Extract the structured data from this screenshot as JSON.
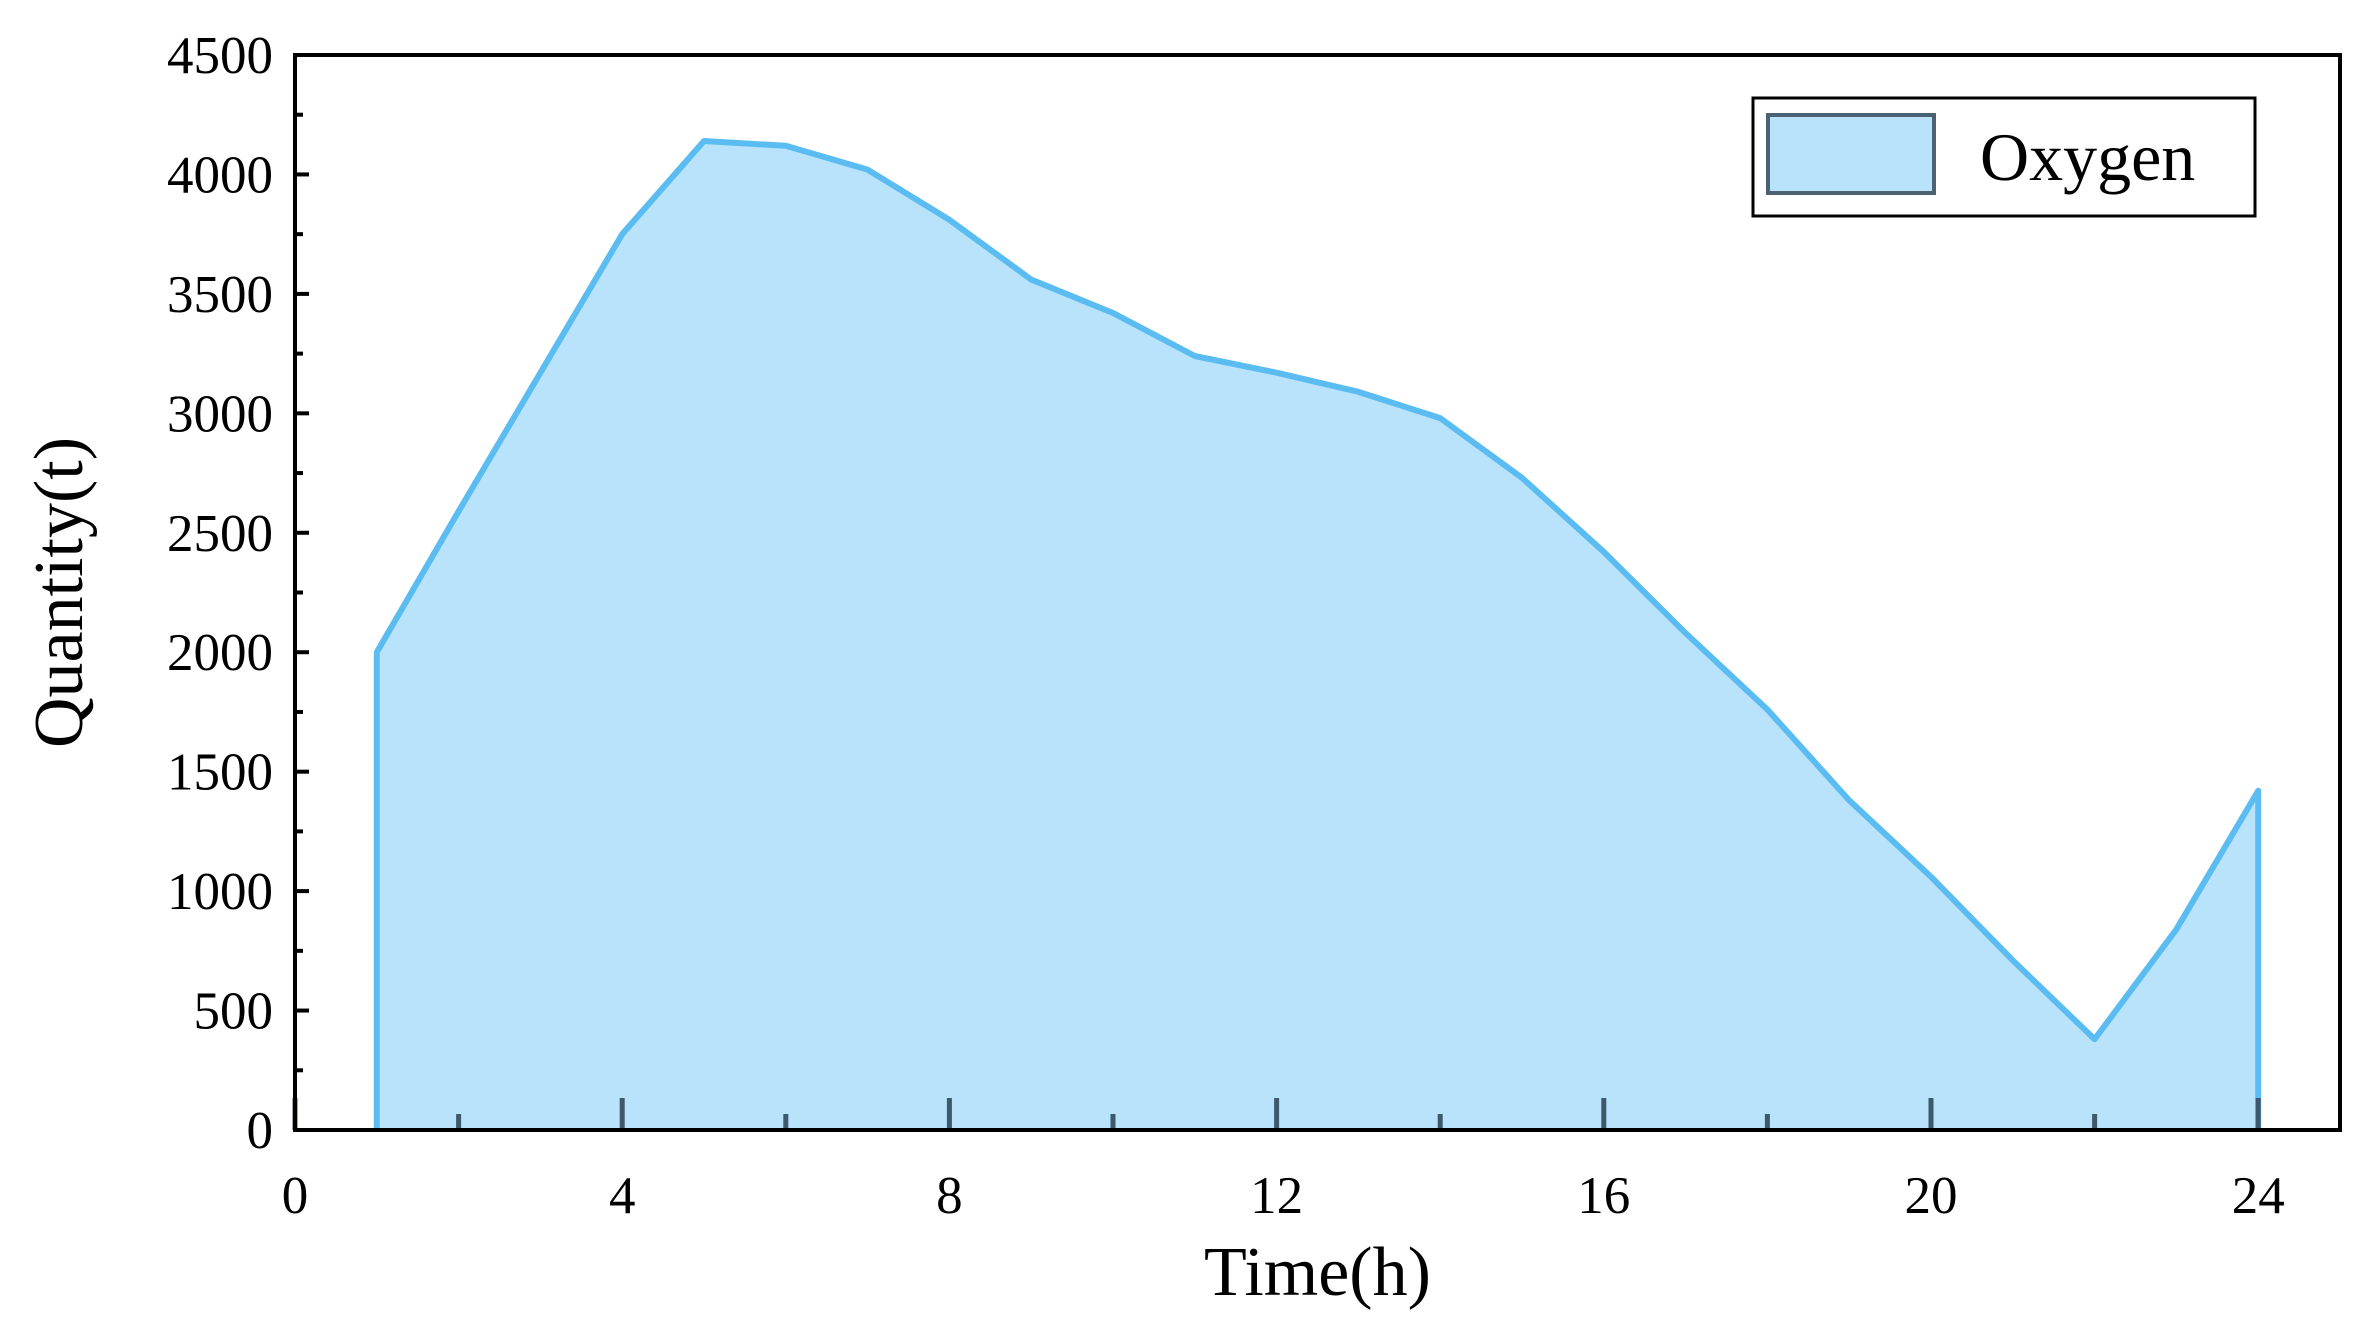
{
  "chart_data": {
    "type": "area",
    "xlabel": "Time(h)",
    "ylabel": "Quantity(t)",
    "xlim": [
      0,
      25
    ],
    "ylim": [
      0,
      4500
    ],
    "x_ticks": [
      0,
      4,
      8,
      12,
      16,
      20,
      24
    ],
    "x_tick_labels": [
      "0",
      "4",
      "8",
      "12",
      "16",
      "20",
      "24"
    ],
    "y_ticks": [
      0,
      500,
      1000,
      1500,
      2000,
      2500,
      3000,
      3500,
      4000,
      4500
    ],
    "y_tick_labels": [
      "0",
      "500",
      "1000",
      "1500",
      "2000",
      "2500",
      "3000",
      "3500",
      "4000",
      "4500"
    ],
    "grid": false,
    "legend_position": "top-right",
    "series": [
      {
        "name": "Oxygen",
        "x": [
          1,
          2,
          3,
          4,
          5,
          6,
          7,
          8,
          9,
          10,
          11,
          12,
          13,
          14,
          15,
          16,
          17,
          18,
          19,
          20,
          21,
          22,
          23,
          24
        ],
        "values": [
          2000,
          2590,
          3170,
          3750,
          4140,
          4120,
          4020,
          3810,
          3560,
          3420,
          3240,
          3170,
          3090,
          2980,
          2730,
          2420,
          2080,
          1760,
          1380,
          1060,
          710,
          380,
          840,
          1420
        ],
        "fill_color": "#b8e3fa",
        "line_color": "#5bbcf2"
      }
    ],
    "axis_color": "#000000",
    "tick_color": "#3d5a6c"
  }
}
